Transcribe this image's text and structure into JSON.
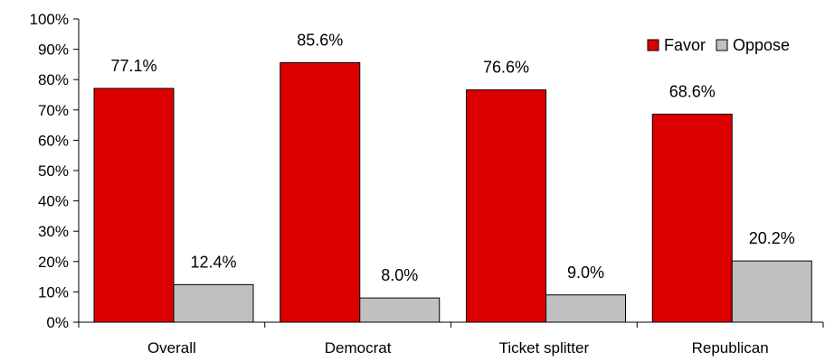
{
  "chart_data": {
    "type": "bar",
    "title": "",
    "xlabel": "",
    "ylabel": "",
    "categories": [
      "Overall",
      "Democrat",
      "Ticket splitter",
      "Republican"
    ],
    "series": [
      {
        "name": "Favor",
        "color": "#dd0000",
        "values": [
          77.1,
          85.6,
          76.6,
          68.6
        ],
        "labels": [
          "77.1%",
          "85.6%",
          "76.6%",
          "68.6%"
        ]
      },
      {
        "name": "Oppose",
        "color": "#c0c0c0",
        "values": [
          12.4,
          8.0,
          9.0,
          20.2
        ],
        "labels": [
          "12.4%",
          "8.0%",
          "9.0%",
          "20.2%"
        ]
      }
    ],
    "ylim": [
      0,
      100
    ],
    "yticks": [
      0,
      10,
      20,
      30,
      40,
      50,
      60,
      70,
      80,
      90,
      100
    ],
    "ytick_labels": [
      "0%",
      "10%",
      "20%",
      "30%",
      "40%",
      "50%",
      "60%",
      "70%",
      "80%",
      "90%",
      "100%"
    ],
    "grid": false,
    "legend_position": "top-right"
  }
}
